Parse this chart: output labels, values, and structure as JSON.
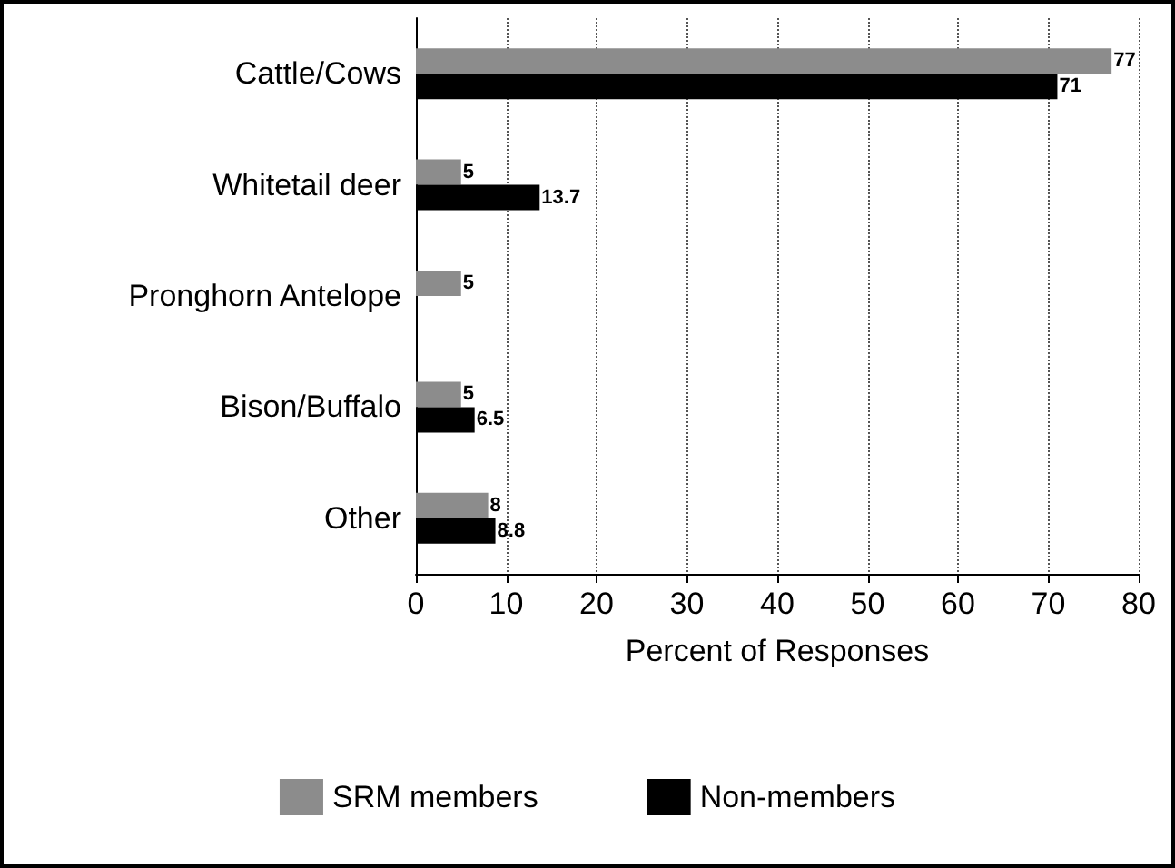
{
  "chart_data": {
    "type": "bar",
    "orientation": "horizontal",
    "categories": [
      "Cattle/Cows",
      "Whitetail deer",
      "Pronghorn Antelope",
      "Bison/Buffalo",
      "Other"
    ],
    "series": [
      {
        "name": "SRM members",
        "color": "#8c8c8c",
        "values": [
          77,
          5,
          5,
          5,
          8
        ]
      },
      {
        "name": "Non-members",
        "color": "#000000",
        "values": [
          71,
          13.7,
          null,
          6.5,
          8.8
        ]
      }
    ],
    "xlabel": "Percent of Responses",
    "xlim": [
      0,
      80
    ],
    "xticks": [
      0,
      10,
      20,
      30,
      40,
      50,
      60,
      70,
      80
    ],
    "grid": "x",
    "legend": "bottom",
    "data_labels": true
  }
}
